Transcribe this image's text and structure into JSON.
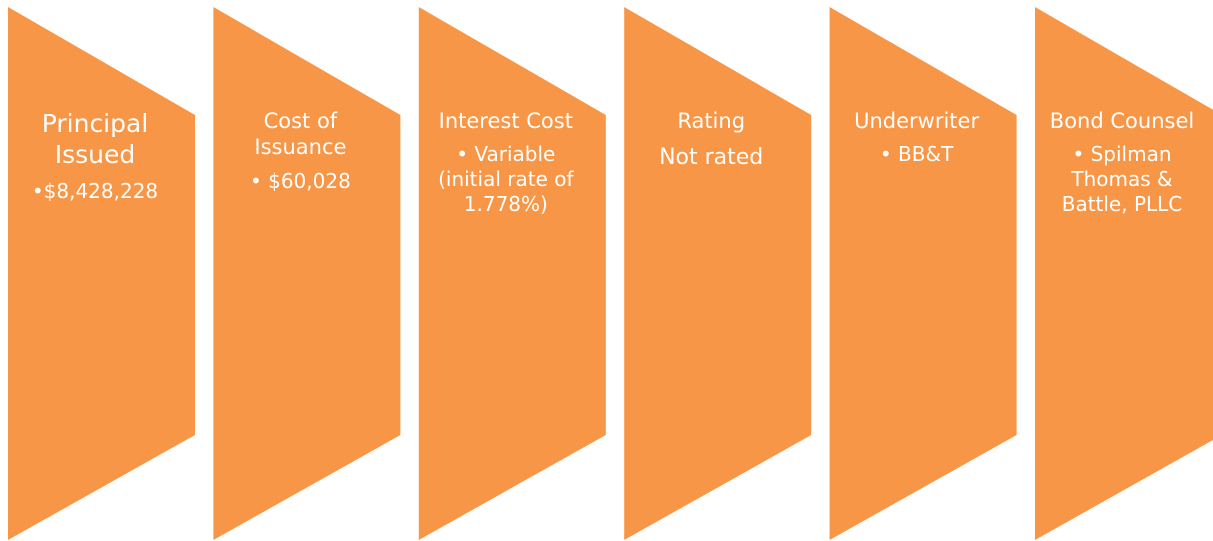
{
  "steps": [
    {
      "title": "Principal Issued",
      "items": [
        "$8,428,228"
      ]
    },
    {
      "title": "Cost of Issuance",
      "items": [
        "$60,028"
      ]
    },
    {
      "title": "Interest Cost",
      "items": [
        "Variable (initial rate of 1.778%)"
      ]
    },
    {
      "title": "Rating",
      "subtitle": "Not rated"
    },
    {
      "title": "Underwriter",
      "items": [
        "BB&T"
      ]
    },
    {
      "title": "Bond Counsel",
      "items": [
        "Spilman Thomas & Battle, PLLC"
      ]
    }
  ]
}
